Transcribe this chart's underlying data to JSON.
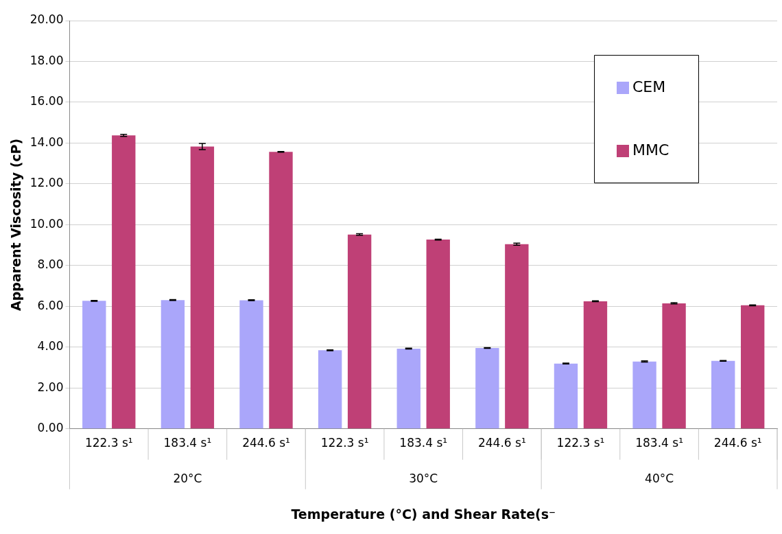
{
  "chart_data": {
    "type": "bar",
    "xlabel": "Temperature (°C) and Shear Rate(s⁻",
    "ylabel": "Apparent Viscosity (cP)",
    "categories": [
      "122.3 s¹",
      "183.4 s¹",
      "244.6 s¹",
      "122.3 s¹",
      "183.4 s¹",
      "244.6 s¹",
      "122.3 s¹",
      "183.4 s¹",
      "244.6 s¹"
    ],
    "annotations": [
      "20°C",
      "30°C",
      "40°C"
    ],
    "series": [
      {
        "name": "CEM",
        "color": "#aaa6fa",
        "values": [
          6.27,
          6.31,
          6.3,
          3.85,
          3.93,
          3.96,
          3.2,
          3.3,
          3.33
        ],
        "errors": [
          0.02,
          0.02,
          0.02,
          0.02,
          0.02,
          0.02,
          0.02,
          0.03,
          0.02
        ]
      },
      {
        "name": "MMC",
        "color": "#bf4076",
        "values": [
          14.38,
          13.83,
          13.57,
          9.52,
          9.27,
          9.05,
          6.25,
          6.15,
          6.05
        ],
        "errors": [
          0.05,
          0.15,
          0.02,
          0.04,
          0.02,
          0.05,
          0.02,
          0.03,
          0.02
        ]
      }
    ],
    "ylim": [
      0,
      20
    ],
    "yticks": [
      {
        "value": 0,
        "label": "0.00"
      },
      {
        "value": 2,
        "label": "2.00"
      },
      {
        "value": 4,
        "label": "4.00"
      },
      {
        "value": 6,
        "label": "6.00"
      },
      {
        "value": 8,
        "label": "8.00"
      },
      {
        "value": 10,
        "label": "10.00"
      },
      {
        "value": 12,
        "label": "12.00"
      },
      {
        "value": 14,
        "label": "14.00"
      },
      {
        "value": 16,
        "label": "16.00"
      },
      {
        "value": 18,
        "label": "18.00"
      },
      {
        "value": 20,
        "label": "20.00"
      }
    ],
    "grid": "y",
    "legend": "top right"
  }
}
